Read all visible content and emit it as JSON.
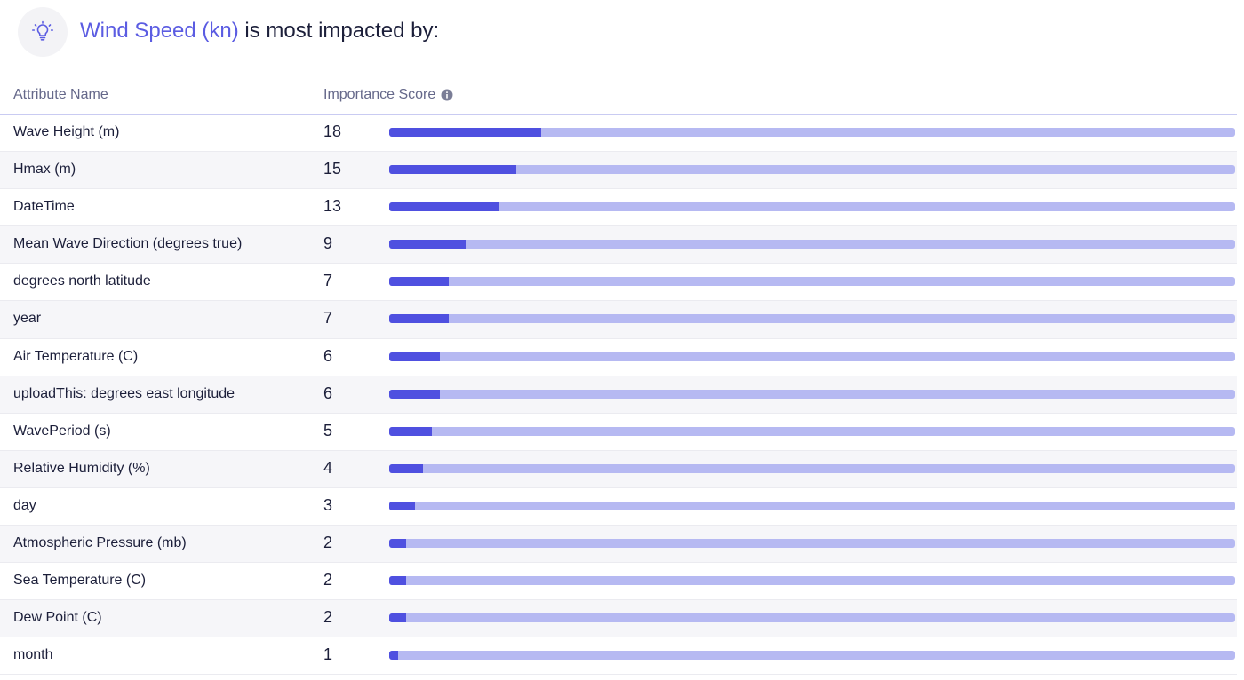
{
  "header": {
    "icon": "lightbulb-icon",
    "target_label": "Wind Speed (kn)",
    "title_suffix": " is most impacted by:"
  },
  "table": {
    "columns": [
      "Attribute Name",
      "Importance Score"
    ],
    "info_icon": "info-icon",
    "score_max": 100,
    "rows": [
      {
        "name": "Wave Height (m)",
        "score": 18
      },
      {
        "name": "Hmax (m)",
        "score": 15
      },
      {
        "name": "DateTime",
        "score": 13
      },
      {
        "name": "Mean Wave Direction (degrees true)",
        "score": 9
      },
      {
        "name": "degrees north latitude",
        "score": 7
      },
      {
        "name": "year",
        "score": 7
      },
      {
        "name": "Air Temperature (C)",
        "score": 6
      },
      {
        "name": "uploadThis: degrees east longitude",
        "score": 6
      },
      {
        "name": "WavePeriod (s)",
        "score": 5
      },
      {
        "name": "Relative Humidity (%)",
        "score": 4
      },
      {
        "name": "day",
        "score": 3
      },
      {
        "name": "Atmospheric Pressure (mb)",
        "score": 2
      },
      {
        "name": "Sea Temperature (C)",
        "score": 2
      },
      {
        "name": "Dew Point (C)",
        "score": 2
      },
      {
        "name": "month",
        "score": 1
      }
    ]
  },
  "colors": {
    "accent": "#5b5ce2",
    "bar_fill": "#4f50e0",
    "bar_track": "#b6b9f2"
  }
}
